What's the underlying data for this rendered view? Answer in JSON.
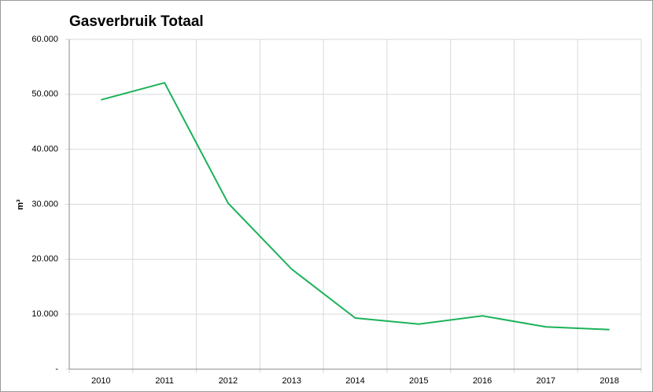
{
  "chart_data": {
    "type": "line",
    "title": "Gasverbruik Totaal",
    "y_label": "m³",
    "categories": [
      "2010",
      "2011",
      "2012",
      "2013",
      "2014",
      "2015",
      "2016",
      "2017",
      "2018"
    ],
    "series": [
      {
        "color": "#1db25a",
        "values": [
          49000,
          52100,
          30200,
          18200,
          9300,
          8200,
          9700,
          7700,
          7200
        ]
      }
    ],
    "ylim": [
      0,
      60000
    ],
    "yticks": [
      {
        "value": 0,
        "label": "-"
      },
      {
        "value": 10000,
        "label": "10.000"
      },
      {
        "value": 20000,
        "label": "20.000"
      },
      {
        "value": 30000,
        "label": "30.000"
      },
      {
        "value": 40000,
        "label": "40.000"
      },
      {
        "value": 50000,
        "label": "50.000"
      },
      {
        "value": 60000,
        "label": "60.000"
      }
    ],
    "grid": true
  }
}
